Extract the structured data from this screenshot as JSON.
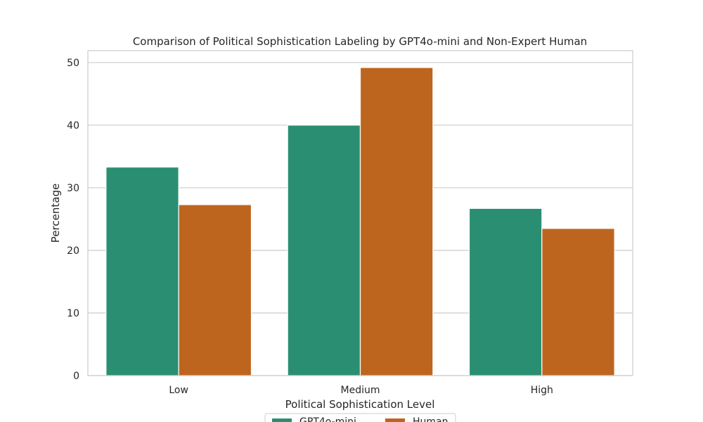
{
  "chart_data": {
    "type": "bar",
    "title": "Comparison of Political Sophistication Labeling by GPT4o-mini and Non-Expert Human",
    "xlabel": "Political Sophistication Level",
    "ylabel": "Percentage",
    "categories": [
      "Low",
      "Medium",
      "High"
    ],
    "series": [
      {
        "name": "GPT4o-mini",
        "color": "#2a8f72",
        "values": [
          33.3,
          40.0,
          26.7
        ]
      },
      {
        "name": "Human",
        "color": "#bd651f",
        "values": [
          27.3,
          49.2,
          23.5
        ]
      }
    ],
    "ylim": [
      0,
      51.9
    ],
    "yticks": [
      0,
      10,
      20,
      30,
      40,
      50
    ],
    "grid": true,
    "legend_position": "bottom-center"
  }
}
